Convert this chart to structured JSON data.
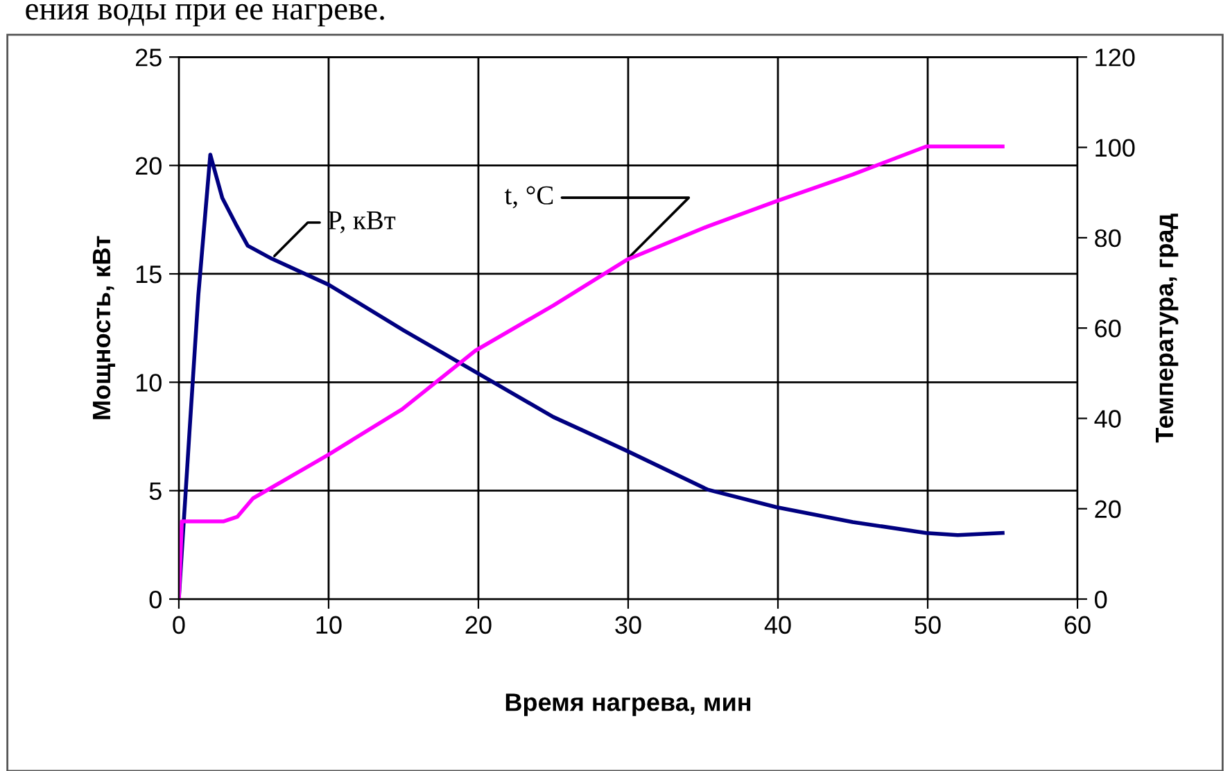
{
  "chart_data": {
    "type": "line",
    "xlabel": "Время нагрева, мин",
    "ylabel": "Мощность, кВт",
    "y2label": "Температура, град",
    "xlim": [
      0,
      60
    ],
    "xticks": [
      0,
      10,
      20,
      30,
      40,
      50,
      60
    ],
    "ylim": [
      0,
      25
    ],
    "yticks": [
      0,
      5,
      10,
      15,
      20,
      25
    ],
    "y2lim": [
      0,
      120
    ],
    "y2ticks": [
      0,
      20,
      40,
      60,
      80,
      100,
      120
    ],
    "grid": true,
    "legend": false,
    "marker": "none",
    "line_style": "solid",
    "series": [
      {
        "color": "#000080",
        "x": [
          0,
          0.7,
          1.3,
          2.1,
          2.9,
          3.8,
          4.6,
          6.2,
          10,
          15,
          20,
          25,
          26.9,
          29.9,
          35.3,
          39.9,
          45,
          49.9,
          52,
          55
        ],
        "values": [
          0,
          7.6,
          14,
          20.5,
          18.5,
          17.3,
          16.3,
          15.7,
          14.5,
          12.4,
          10.4,
          8.4,
          7.8,
          6.84,
          5.05,
          4.24,
          3.55,
          3.05,
          2.95,
          3.05
        ]
      },
      {
        "color": "#ff00ff",
        "axis": "y2",
        "x": [
          0,
          0.2,
          3,
          3.9,
          4.95,
          10,
          14.9,
          19.8,
          25,
          29.9,
          35.3,
          39.9,
          45,
          49.9,
          55
        ],
        "values": [
          0,
          17.2,
          17.2,
          18.2,
          22.3,
          32,
          42,
          55,
          65,
          75.1,
          82.5,
          88.1,
          94,
          100.2,
          100.2
        ]
      }
    ],
    "annotations": [
      {
        "text": "P, кВт",
        "x": 6.2,
        "y": 15.7
      },
      {
        "text": "t, °C",
        "x": 29.9,
        "y": 15.65
      },
      "ения воды при ее нагреве."
    ]
  }
}
